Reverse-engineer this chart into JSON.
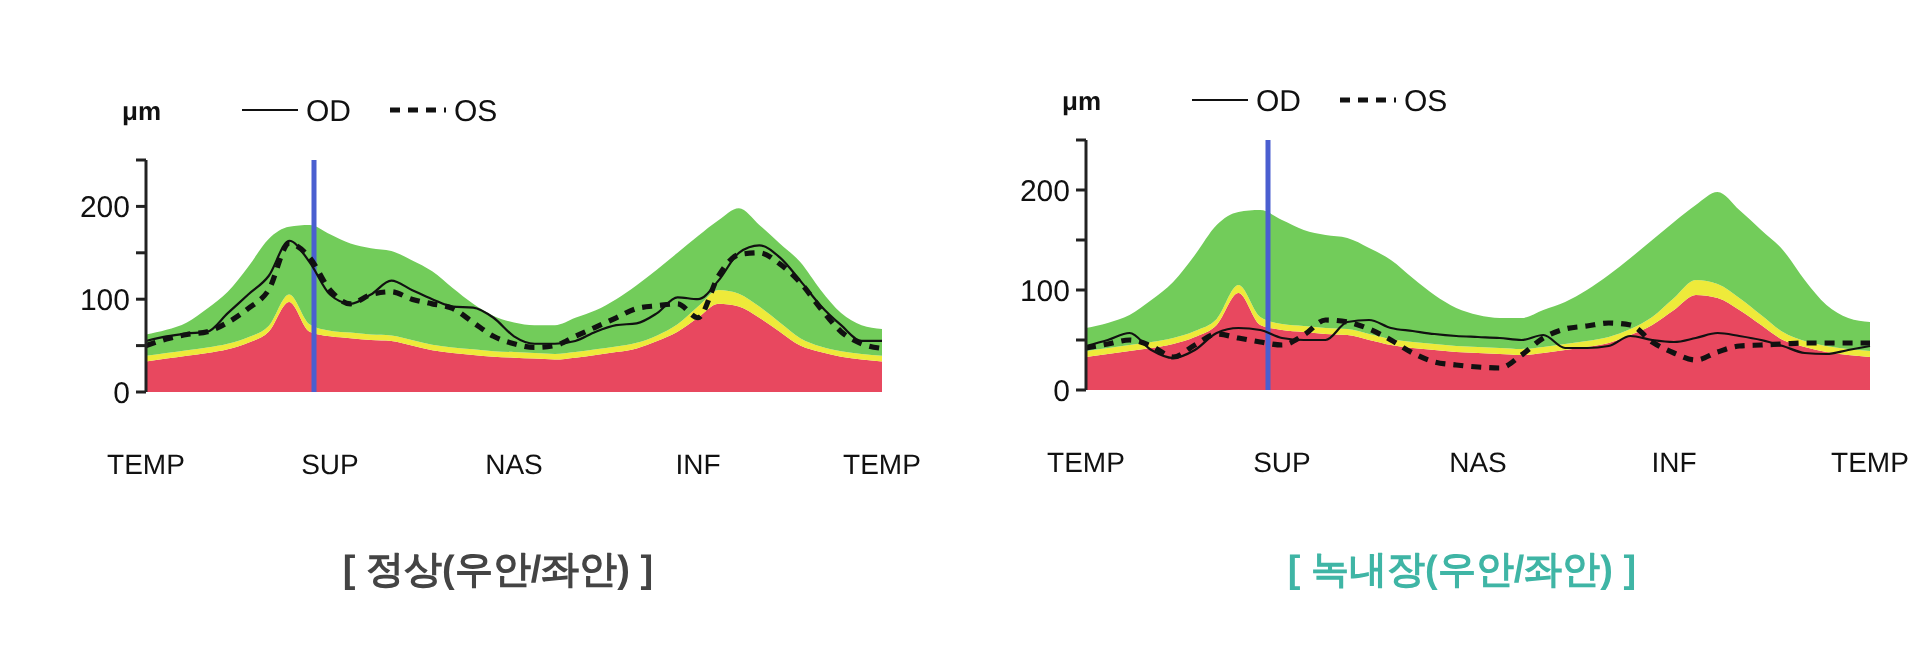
{
  "chart_data": [
    {
      "type": "line",
      "title": "[ 정상(우안/좌안) ]",
      "ylabel": "μm",
      "ylim": [
        0,
        250
      ],
      "categories": [
        "TEMP",
        null,
        null,
        null,
        null,
        null,
        null,
        null,
        null,
        "SUP",
        null,
        null,
        null,
        null,
        null,
        null,
        null,
        null,
        "NAS",
        null,
        null,
        null,
        null,
        null,
        null,
        null,
        null,
        "INF",
        null,
        null,
        null,
        null,
        null,
        null,
        null,
        null,
        "TEMP"
      ],
      "yticks": [
        0,
        {
          "value": 50,
          "label": null
        },
        100,
        {
          "value": 150,
          "label": null
        },
        200,
        {
          "value": 250,
          "label": null
        }
      ],
      "stacked": true,
      "legend": "top",
      "series": [
        {
          "type": "area",
          "color": "#e8485f",
          "values": [
            33,
            36,
            39,
            42,
            46,
            53,
            65,
            97,
            65,
            60,
            58,
            56,
            55,
            50,
            45,
            42,
            40,
            38,
            37,
            36,
            35,
            37,
            40,
            43,
            47,
            55,
            65,
            80,
            95,
            92,
            80,
            65,
            50,
            43,
            38,
            35,
            33
          ]
        },
        {
          "type": "area",
          "color": "#eeea3a",
          "values": [
            6,
            6,
            6,
            6,
            6,
            6,
            6,
            8,
            8,
            6,
            6,
            6,
            6,
            6,
            6,
            6,
            6,
            6,
            6,
            6,
            6,
            6,
            6,
            6,
            6,
            6,
            8,
            12,
            15,
            14,
            12,
            10,
            8,
            6,
            6,
            6,
            6
          ]
        },
        {
          "type": "area",
          "color": "#72cc5a",
          "values": [
            23,
            25,
            30,
            42,
            56,
            76,
            94,
            73,
            107,
            104,
            96,
            93,
            91,
            86,
            79,
            64,
            49,
            38,
            32,
            30,
            31,
            37,
            42,
            51,
            62,
            71,
            77,
            76,
            75,
            92,
            88,
            85,
            82,
            61,
            41,
            31,
            29
          ]
        },
        {
          "name": "OD",
          "color": "#111111",
          "line_style": "solid",
          "values": [
            55,
            60,
            63,
            65,
            85,
            105,
            125,
            163,
            140,
            105,
            95,
            105,
            120,
            110,
            100,
            92,
            91,
            80,
            60,
            52,
            52,
            55,
            65,
            72,
            74,
            85,
            102,
            100,
            120,
            150,
            158,
            145,
            120,
            93,
            72,
            55,
            55
          ]
        },
        {
          "name": "OS",
          "color": "#111111",
          "line_style": "dashed",
          "values": [
            50,
            57,
            62,
            65,
            75,
            90,
            110,
            160,
            145,
            110,
            95,
            105,
            108,
            100,
            95,
            90,
            75,
            60,
            52,
            48,
            50,
            60,
            70,
            80,
            90,
            93,
            95,
            80,
            125,
            148,
            150,
            138,
            118,
            90,
            65,
            52,
            47
          ]
        }
      ]
    },
    {
      "type": "line",
      "title": "[ 녹내장(우안/좌안) ]",
      "ylabel": "μm",
      "ylim": [
        0,
        250
      ],
      "categories": [
        "TEMP",
        null,
        null,
        null,
        null,
        null,
        null,
        null,
        null,
        "SUP",
        null,
        null,
        null,
        null,
        null,
        null,
        null,
        null,
        "NAS",
        null,
        null,
        null,
        null,
        null,
        null,
        null,
        null,
        "INF",
        null,
        null,
        null,
        null,
        null,
        null,
        null,
        null,
        "TEMP"
      ],
      "yticks": [
        0,
        {
          "value": 50,
          "label": null
        },
        100,
        {
          "value": 150,
          "label": null
        },
        200,
        {
          "value": 250,
          "label": null
        }
      ],
      "stacked": true,
      "legend": "top",
      "series": [
        {
          "type": "area",
          "color": "#e8485f",
          "values": [
            33,
            36,
            39,
            42,
            46,
            53,
            65,
            97,
            65,
            60,
            58,
            56,
            55,
            50,
            45,
            42,
            40,
            38,
            37,
            36,
            35,
            37,
            40,
            43,
            47,
            55,
            65,
            80,
            95,
            92,
            80,
            65,
            50,
            43,
            38,
            35,
            33
          ]
        },
        {
          "type": "area",
          "color": "#eeea3a",
          "values": [
            6,
            6,
            6,
            6,
            6,
            6,
            6,
            8,
            8,
            6,
            6,
            6,
            6,
            6,
            6,
            6,
            6,
            6,
            6,
            6,
            6,
            6,
            6,
            6,
            6,
            6,
            8,
            12,
            15,
            14,
            12,
            10,
            8,
            6,
            6,
            6,
            6
          ]
        },
        {
          "type": "area",
          "color": "#72cc5a",
          "values": [
            23,
            25,
            30,
            42,
            56,
            76,
            94,
            73,
            107,
            104,
            96,
            93,
            91,
            86,
            79,
            64,
            49,
            38,
            32,
            30,
            31,
            37,
            42,
            51,
            62,
            71,
            77,
            76,
            75,
            92,
            88,
            85,
            82,
            61,
            41,
            31,
            29
          ]
        },
        {
          "name": "OD",
          "color": "#111111",
          "line_style": "solid",
          "values": [
            44,
            50,
            57,
            40,
            32,
            40,
            57,
            62,
            60,
            52,
            50,
            50,
            68,
            70,
            62,
            59,
            56,
            54,
            53,
            52,
            50,
            55,
            42,
            42,
            44,
            54,
            50,
            48,
            52,
            57,
            54,
            50,
            44,
            37,
            36,
            40,
            44
          ]
        },
        {
          "name": "OS",
          "color": "#111111",
          "line_style": "dashed",
          "values": [
            42,
            46,
            50,
            44,
            33,
            45,
            56,
            52,
            48,
            45,
            55,
            70,
            68,
            61,
            50,
            37,
            28,
            25,
            23,
            22,
            35,
            52,
            61,
            64,
            67,
            65,
            48,
            37,
            30,
            38,
            44,
            45,
            46,
            47,
            47,
            47,
            47
          ]
        }
      ]
    }
  ]
}
